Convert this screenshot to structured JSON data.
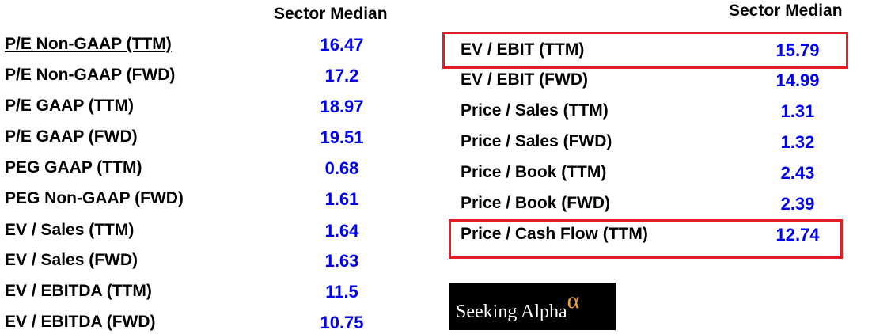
{
  "left": {
    "header": "Sector Median",
    "rows": [
      {
        "label": "P/E Non-GAAP (TTM)",
        "value": "16.47"
      },
      {
        "label": "P/E Non-GAAP (FWD)",
        "value": "17.2"
      },
      {
        "label": "P/E GAAP (TTM)",
        "value": "18.97"
      },
      {
        "label": "P/E GAAP (FWD)",
        "value": "19.51"
      },
      {
        "label": "PEG GAAP (TTM)",
        "value": "0.68"
      },
      {
        "label": "PEG Non-GAAP (FWD)",
        "value": "1.61"
      },
      {
        "label": "EV / Sales (TTM)",
        "value": "1.64"
      },
      {
        "label": "EV / Sales (FWD)",
        "value": "1.63"
      },
      {
        "label": "EV / EBITDA (TTM)",
        "value": "11.5"
      },
      {
        "label": "EV / EBITDA (FWD)",
        "value": "10.75"
      }
    ]
  },
  "right": {
    "header": "Sector Median",
    "rows": [
      {
        "label": "EV / EBIT (TTM)",
        "value": "15.79"
      },
      {
        "label": "EV / EBIT (FWD)",
        "value": "14.99"
      },
      {
        "label": "Price / Sales (TTM)",
        "value": "1.31"
      },
      {
        "label": "Price / Sales (FWD)",
        "value": "1.32"
      },
      {
        "label": "Price / Book (TTM)",
        "value": "2.43"
      },
      {
        "label": "Price / Book (FWD)",
        "value": "2.39"
      },
      {
        "label": "Price / Cash Flow (TTM)",
        "value": "12.74"
      }
    ]
  },
  "logo": {
    "text": "Seeking Alpha",
    "symbol": "α"
  },
  "colors": {
    "value": "#0000ee",
    "highlight_box": "#e31e24",
    "logo_bg": "#000000"
  }
}
